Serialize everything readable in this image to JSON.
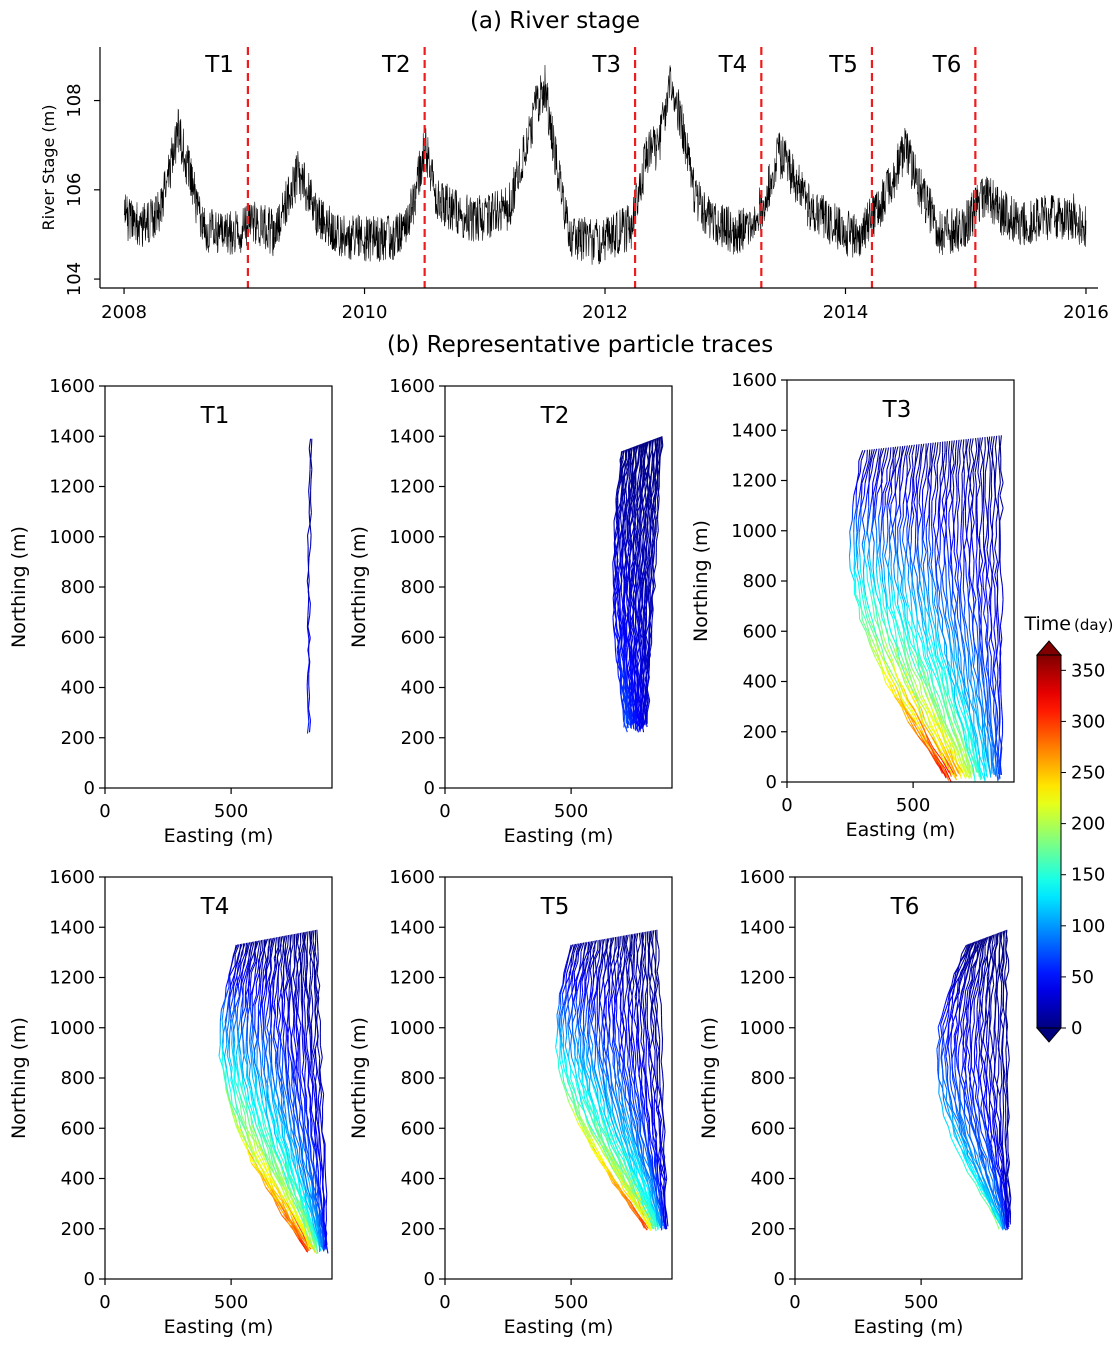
{
  "figure": {
    "panel_a_title": "(a) River stage",
    "panel_b_title": "(b) Representative particle traces"
  },
  "colorbar": {
    "title": "Time",
    "unit": "(day)",
    "ticks": [
      0,
      50,
      100,
      150,
      200,
      250,
      300,
      350
    ],
    "range": [
      0,
      365
    ],
    "colormap": "jet",
    "extend": "both"
  },
  "colors": {
    "annotation_red": "#ee1c1c",
    "stage_line": "#000000",
    "axis": "#000000"
  },
  "chart_data": [
    {
      "type": "line",
      "panel": "a",
      "ylabel": "River Stage (m)",
      "xlabel": "",
      "xlim": [
        2007.8,
        2016.1
      ],
      "ylim": [
        103.8,
        109.2
      ],
      "xticks": [
        2008,
        2010,
        2012,
        2014,
        2016
      ],
      "yticks": [
        104,
        106,
        108
      ],
      "series": [
        {
          "smooth_points": [
            [
              2008.0,
              105.4
            ],
            [
              2008.15,
              105.2
            ],
            [
              2008.3,
              105.5
            ],
            [
              2008.45,
              107.3
            ],
            [
              2008.55,
              106.3
            ],
            [
              2008.65,
              105.1
            ],
            [
              2008.9,
              105.0
            ],
            [
              2009.1,
              105.3
            ],
            [
              2009.25,
              105.0
            ],
            [
              2009.45,
              106.4
            ],
            [
              2009.6,
              105.5
            ],
            [
              2009.8,
              105.0
            ],
            [
              2010.0,
              104.9
            ],
            [
              2010.25,
              104.9
            ],
            [
              2010.4,
              105.6
            ],
            [
              2010.5,
              107.0
            ],
            [
              2010.6,
              105.8
            ],
            [
              2010.9,
              105.3
            ],
            [
              2011.2,
              105.6
            ],
            [
              2011.42,
              107.8
            ],
            [
              2011.5,
              108.3
            ],
            [
              2011.6,
              106.5
            ],
            [
              2011.7,
              105.0
            ],
            [
              2011.9,
              104.8
            ],
            [
              2012.1,
              105.0
            ],
            [
              2012.22,
              105.2
            ],
            [
              2012.35,
              106.8
            ],
            [
              2012.45,
              107.0
            ],
            [
              2012.55,
              108.5
            ],
            [
              2012.65,
              107.3
            ],
            [
              2012.75,
              105.8
            ],
            [
              2012.9,
              105.3
            ],
            [
              2013.1,
              105.0
            ],
            [
              2013.3,
              105.6
            ],
            [
              2013.45,
              106.8
            ],
            [
              2013.55,
              106.4
            ],
            [
              2013.7,
              105.6
            ],
            [
              2013.9,
              105.2
            ],
            [
              2014.1,
              104.9
            ],
            [
              2014.3,
              105.7
            ],
            [
              2014.5,
              106.9
            ],
            [
              2014.62,
              106.0
            ],
            [
              2014.8,
              105.0
            ],
            [
              2015.0,
              105.2
            ],
            [
              2015.15,
              105.9
            ],
            [
              2015.3,
              105.5
            ],
            [
              2015.5,
              105.2
            ],
            [
              2015.7,
              105.4
            ],
            [
              2015.9,
              105.4
            ],
            [
              2016.0,
              105.1
            ]
          ]
        }
      ],
      "events": [
        {
          "label": "T1",
          "x": 2009.03
        },
        {
          "label": "T2",
          "x": 2010.5
        },
        {
          "label": "T3",
          "x": 2012.25
        },
        {
          "label": "T4",
          "x": 2013.3
        },
        {
          "label": "T5",
          "x": 2014.22
        },
        {
          "label": "T6",
          "x": 2015.08
        }
      ]
    },
    {
      "type": "line",
      "panel": "T1",
      "label": "T1",
      "xlabel": "Easting (m)",
      "ylabel": "Northing (m)",
      "xlim": [
        0,
        900
      ],
      "ylim": [
        0,
        1600
      ],
      "xticks": [
        0,
        500
      ],
      "yticks": [
        0,
        200,
        400,
        600,
        800,
        1000,
        1200,
        1400,
        1600
      ],
      "traces": {
        "count": 2,
        "start_x": [
          815,
          820
        ],
        "start_y": 1390,
        "end_x": [
          805,
          810
        ],
        "end_y": 205,
        "time_end": [
          40,
          60
        ]
      }
    },
    {
      "type": "line",
      "panel": "T2",
      "label": "T2",
      "xlabel": "Easting (m)",
      "ylabel": "Northing (m)",
      "xlim": [
        0,
        900
      ],
      "ylim": [
        0,
        1600
      ],
      "xticks": [
        0,
        500
      ],
      "yticks": [
        0,
        200,
        400,
        600,
        800,
        1000,
        1200,
        1400,
        1600
      ],
      "traces": {
        "count": 45,
        "start_x": [
          700,
          860
        ],
        "start_y": 1400,
        "end_x": [
          680,
          800
        ],
        "end_y": 220,
        "time_end": [
          30,
          80
        ]
      }
    },
    {
      "type": "line",
      "panel": "T3",
      "label": "T3",
      "xlabel": "Easting (m)",
      "ylabel": "Northing (m)",
      "xlim": [
        0,
        900
      ],
      "ylim": [
        0,
        1600
      ],
      "xticks": [
        0,
        500
      ],
      "yticks": [
        0,
        200,
        400,
        600,
        800,
        1000,
        1200,
        1400,
        1600
      ],
      "traces": {
        "count": 60,
        "start_x": [
          300,
          850
        ],
        "start_y": 1380,
        "end_x": [
          520,
          850
        ],
        "end_y": 0,
        "time_end": [
          60,
          365
        ]
      }
    },
    {
      "type": "line",
      "panel": "T4",
      "label": "T4",
      "xlabel": "Easting (m)",
      "ylabel": "Northing (m)",
      "xlim": [
        0,
        900
      ],
      "ylim": [
        0,
        1600
      ],
      "xticks": [
        0,
        500
      ],
      "yticks": [
        0,
        200,
        400,
        600,
        800,
        1000,
        1200,
        1400,
        1600
      ],
      "traces": {
        "count": 55,
        "start_x": [
          520,
          840
        ],
        "start_y": 1390,
        "end_x": [
          760,
          880
        ],
        "end_y": 100,
        "time_end": [
          40,
          365
        ]
      }
    },
    {
      "type": "line",
      "panel": "T5",
      "label": "T5",
      "xlabel": "Easting (m)",
      "ylabel": "Northing (m)",
      "xlim": [
        0,
        900
      ],
      "ylim": [
        0,
        1600
      ],
      "xticks": [
        0,
        500
      ],
      "yticks": [
        0,
        200,
        400,
        600,
        800,
        1000,
        1200,
        1400,
        1600
      ],
      "traces": {
        "count": 55,
        "start_x": [
          500,
          840
        ],
        "start_y": 1390,
        "end_x": [
          760,
          880
        ],
        "end_y": 190,
        "time_end": [
          30,
          330
        ]
      }
    },
    {
      "type": "line",
      "panel": "T6",
      "label": "T6",
      "xlabel": "Easting (m)",
      "ylabel": "Northing (m)",
      "xlim": [
        0,
        900
      ],
      "ylim": [
        0,
        1600
      ],
      "xticks": [
        0,
        500
      ],
      "yticks": [
        0,
        200,
        400,
        600,
        800,
        1000,
        1200,
        1400,
        1600
      ],
      "traces": {
        "count": 35,
        "start_x": [
          680,
          840
        ],
        "start_y": 1390,
        "end_x": [
          800,
          850
        ],
        "end_y": 190,
        "time_end": [
          20,
          200
        ]
      }
    }
  ]
}
